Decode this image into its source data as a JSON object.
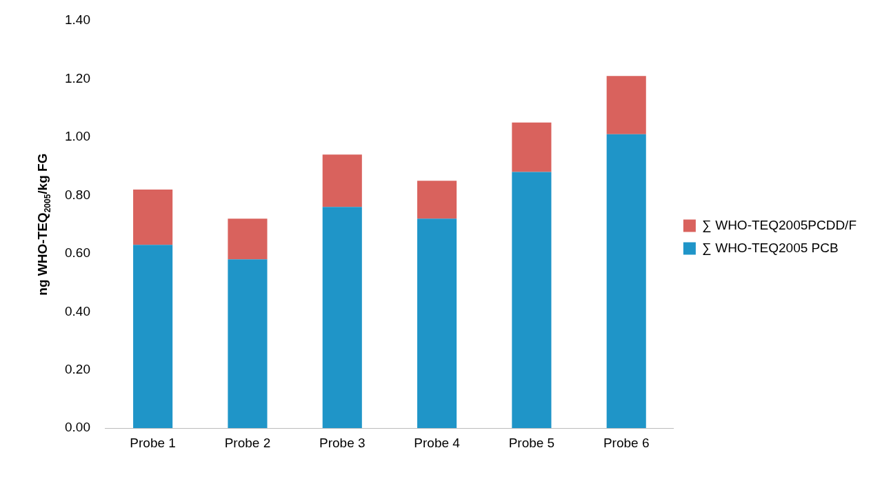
{
  "chart_data": {
    "type": "bar",
    "stacked": true,
    "ylabel": "ng WHO-TEQ$_{2005}$/kg FG",
    "categories": [
      "Probe 1",
      "Probe 2",
      "Probe 3",
      "Probe 4",
      "Probe 5",
      "Probe 6"
    ],
    "series": [
      {
        "name": "∑ WHO-TEQ2005 PCB",
        "color": "#1f95c8",
        "values": [
          0.63,
          0.58,
          0.76,
          0.72,
          0.88,
          1.01
        ]
      },
      {
        "name": "∑ WHO-TEQ2005PCDD/F",
        "color": "#d9625d",
        "values": [
          0.19,
          0.14,
          0.18,
          0.13,
          0.17,
          0.2
        ]
      }
    ],
    "ylim": [
      0,
      1.4
    ],
    "yticks": [
      {
        "value": 0,
        "label": "0.00"
      },
      {
        "value": 0.2,
        "label": "0.20"
      },
      {
        "value": 0.4,
        "label": "0.40"
      },
      {
        "value": 0.6,
        "label": "0.60"
      },
      {
        "value": 0.8,
        "label": "0.80"
      },
      {
        "value": 1,
        "label": "1.00"
      },
      {
        "value": 1.2,
        "label": "1.20"
      },
      {
        "value": 1.4,
        "label": "1.40"
      }
    ],
    "grid": false,
    "legend": "right"
  }
}
